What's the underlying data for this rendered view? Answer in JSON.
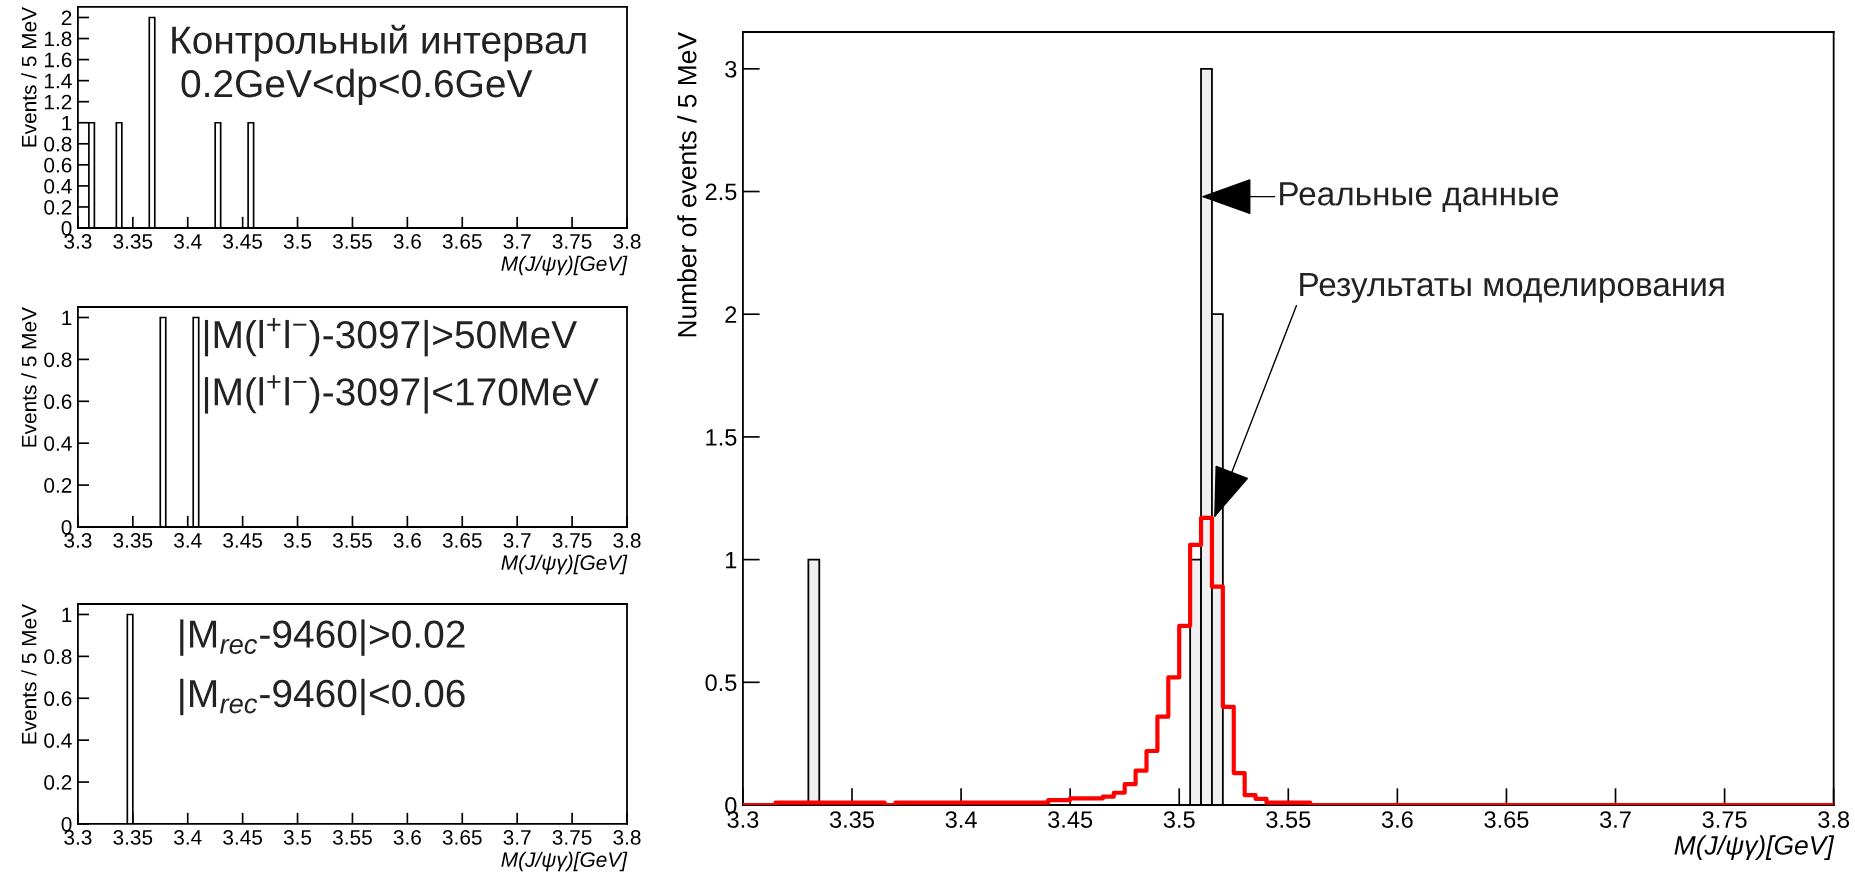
{
  "chart_data": [
    {
      "type": "histogram",
      "xlabel": "M(J/ψγ)[GeV]",
      "ylabel": "Events / 5 MeV",
      "bins": [
        3.31,
        3.315,
        3.335,
        3.34,
        3.365,
        3.37,
        3.425,
        3.43,
        3.455,
        3.46
      ],
      "values": [
        1,
        0,
        1,
        0,
        2,
        0,
        1,
        0,
        1
      ],
      "color": "#ffffff",
      "xlim": [
        3.3,
        3.8
      ],
      "xticks": [
        3.3,
        3.35,
        3.4,
        3.45,
        3.5,
        3.55,
        3.6,
        3.65,
        3.7,
        3.75,
        3.8
      ],
      "ylim": [
        0,
        2.1
      ],
      "yticks": [
        0,
        0.2,
        0.4,
        0.6,
        0.8,
        1,
        1.2,
        1.4,
        1.6,
        1.8,
        2
      ],
      "annotations": [
        "Контрольный интервал",
        "0.2GeV<dp<0.6GeV"
      ]
    },
    {
      "type": "histogram",
      "xlabel": "M(J/ψγ)[GeV]",
      "ylabel": "Events / 5 MeV",
      "bins": [
        3.375,
        3.38,
        3.405,
        3.41
      ],
      "values": [
        1,
        0,
        1
      ],
      "color": "#ffffff",
      "xlim": [
        3.3,
        3.8
      ],
      "xticks": [
        3.3,
        3.35,
        3.4,
        3.45,
        3.5,
        3.55,
        3.6,
        3.65,
        3.7,
        3.75,
        3.8
      ],
      "ylim": [
        0,
        1.05
      ],
      "yticks": [
        0,
        0.2,
        0.4,
        0.6,
        0.8,
        1
      ],
      "annotations": [
        "|M(l$^{+}$l$^{−}$)-3097|>50MeV",
        "|M(l$^{+}$l$^{−}$)-3097|<170MeV"
      ]
    },
    {
      "type": "histogram",
      "xlabel": "M(J/ψγ)[GeV]",
      "ylabel": "Events / 5 MeV",
      "bins": [
        3.345,
        3.35
      ],
      "values": [
        1
      ],
      "color": "#ffffff",
      "xlim": [
        3.3,
        3.8
      ],
      "xticks": [
        3.3,
        3.35,
        3.4,
        3.45,
        3.5,
        3.55,
        3.6,
        3.65,
        3.7,
        3.75,
        3.8
      ],
      "ylim": [
        0,
        1.05
      ],
      "yticks": [
        0,
        0.2,
        0.4,
        0.6,
        0.8,
        1
      ],
      "annotations": [
        "|M$_{rec}$-9460|>0.02",
        "|M$_{rec}$-9460|<0.06"
      ]
    },
    {
      "type": "histogram",
      "xlabel": "M(J/ψγ)[GeV]",
      "ylabel": "Number of events / 5 MeV",
      "bins": [
        3.33,
        3.335,
        3.505,
        3.51,
        3.515,
        3.52
      ],
      "series": [
        {
          "type": "histogram",
          "color": "#f0f0f0",
          "values": [
            1,
            0,
            1,
            3,
            2
          ]
        },
        {
          "type": "line",
          "color": "#ff0000",
          "x": [
            3.3,
            3.315,
            3.315,
            3.365,
            3.365,
            3.37,
            3.37,
            3.44,
            3.44,
            3.45,
            3.45,
            3.465,
            3.465,
            3.47,
            3.47,
            3.475,
            3.475,
            3.48,
            3.48,
            3.485,
            3.485,
            3.49,
            3.49,
            3.495,
            3.495,
            3.5,
            3.5,
            3.505,
            3.505,
            3.51,
            3.51,
            3.515,
            3.515,
            3.52,
            3.52,
            3.525,
            3.525,
            3.53,
            3.53,
            3.535,
            3.535,
            3.54,
            3.54,
            3.56,
            3.56,
            3.8
          ],
          "values": [
            0,
            0,
            0.01,
            0.01,
            0,
            0,
            0.01,
            0.01,
            0.02,
            0.02,
            0.027,
            0.027,
            0.034,
            0.034,
            0.05,
            0.05,
            0.085,
            0.085,
            0.14,
            0.14,
            0.22,
            0.22,
            0.36,
            0.36,
            0.52,
            0.52,
            0.73,
            0.73,
            1.06,
            1.06,
            1.17,
            1.17,
            0.89,
            0.89,
            0.4,
            0.4,
            0.13,
            0.13,
            0.04,
            0.04,
            0.025,
            0.025,
            0.01,
            0.01,
            0,
            0
          ]
        }
      ],
      "xlim": [
        3.3,
        3.8
      ],
      "xticks": [
        3.3,
        3.35,
        3.4,
        3.45,
        3.5,
        3.55,
        3.6,
        3.65,
        3.7,
        3.75,
        3.8
      ],
      "ylim": [
        0,
        3.15
      ],
      "yticks": [
        0,
        0.5,
        1,
        1.5,
        2,
        2.5,
        3
      ],
      "annotations": [
        "Реальные данные",
        {
          "text": "Результаты моделирования",
          "x": 3.516,
          "y": 1.17
        }
      ]
    }
  ]
}
